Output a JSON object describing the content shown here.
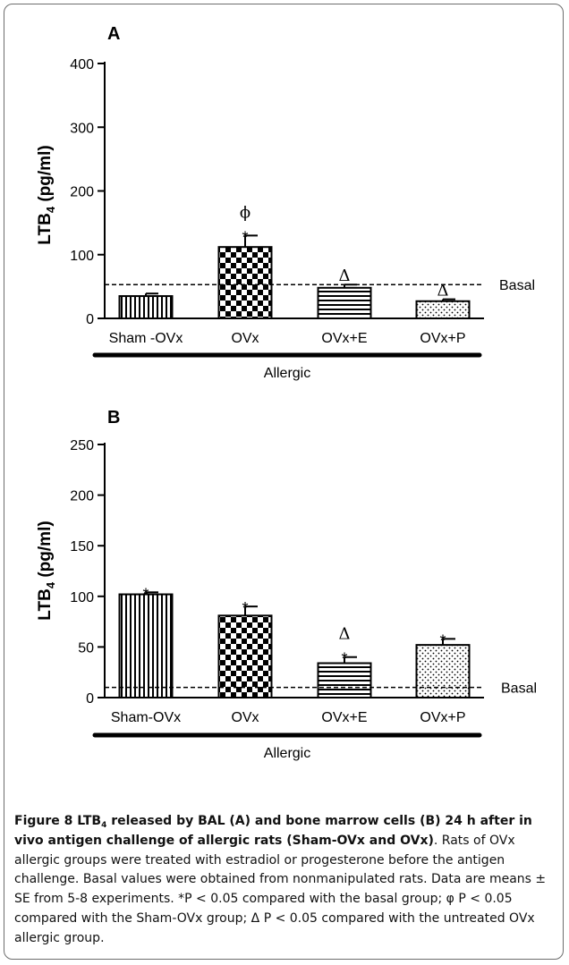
{
  "chart_data": [
    {
      "panel": "A",
      "type": "bar",
      "ylabel_main": "LTB",
      "ylabel_sub": "4",
      "ylabel_rest": " (pg/ml)",
      "ylim": [
        0,
        400
      ],
      "yticks": [
        0,
        100,
        200,
        300,
        400
      ],
      "categories": [
        "Sham -OVx",
        "OVx",
        "OVx+E",
        "OVx+P"
      ],
      "values": [
        35,
        112,
        48,
        27
      ],
      "errors": [
        4,
        18,
        5,
        3
      ],
      "patterns": [
        "vlines",
        "checker",
        "hlines",
        "dots"
      ],
      "annotations": [
        [],
        [
          "*",
          "ϕ"
        ],
        [
          "Δ"
        ],
        [
          "Δ"
        ]
      ],
      "basal_value": 53,
      "basal_label": "Basal",
      "group_label": "Allergic"
    },
    {
      "panel": "B",
      "type": "bar",
      "ylabel_main": "LTB",
      "ylabel_sub": "4",
      "ylabel_rest": " (pg/ml)",
      "ylim": [
        0,
        250
      ],
      "yticks": [
        0,
        50,
        100,
        150,
        200,
        250
      ],
      "categories": [
        "Sham-OVx",
        "OVx",
        "OVx+E",
        "OVx+P"
      ],
      "values": [
        102,
        81,
        34,
        52
      ],
      "errors": [
        2,
        9,
        6,
        6
      ],
      "patterns": [
        "vlines",
        "checker",
        "hlines",
        "dots"
      ],
      "annotations": [
        [
          "*"
        ],
        [
          "*"
        ],
        [
          "*",
          "Δ"
        ],
        [
          "*"
        ]
      ],
      "basal_value": 10,
      "basal_label": "Basal",
      "group_label": "Allergic"
    }
  ],
  "caption": {
    "bold_1": "Figure 8 LTB",
    "bold_sub": "4",
    "bold_2": " released by BAL (A) and bone marrow cells (B) 24 h after in vivo antigen challenge of allergic rats (Sham-OVx and OVx)",
    "body": ". Rats of OVx allergic groups were treated with estradiol or progesterone before the antigen challenge. Basal values were obtained from nonmanipulated rats. Data are means ± SE from 5-8 experiments. *P < 0.05 compared with the basal group; φ P < 0.05 compared with the Sham-OVx group; Δ P < 0.05 compared with the untreated OVx allergic group."
  }
}
